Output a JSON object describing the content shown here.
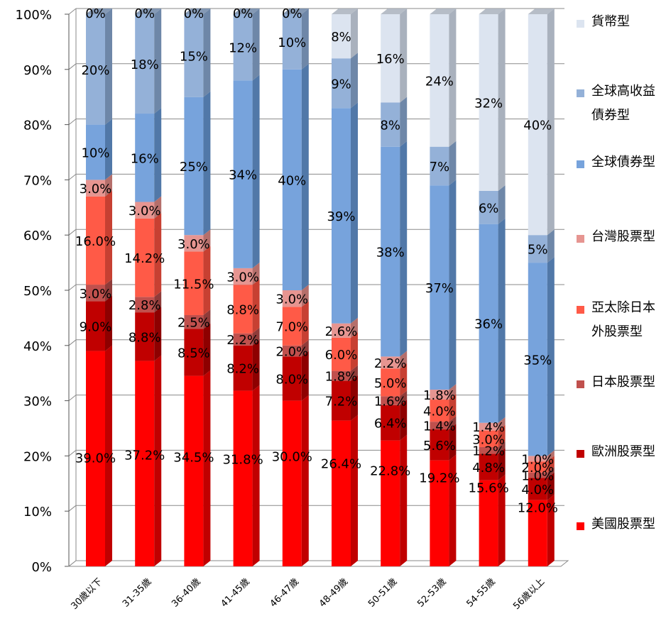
{
  "chart_data": {
    "type": "bar",
    "stacked": true,
    "percent": true,
    "categories": [
      "30歲以下",
      "31-35歲",
      "36-40歲",
      "41-45歲",
      "46-47歲",
      "48-49歲",
      "50-51歲",
      "52-53歲",
      "54-55歲",
      "56歲以上"
    ],
    "y_ticks": [
      "0%",
      "10%",
      "20%",
      "30%",
      "40%",
      "50%",
      "60%",
      "70%",
      "80%",
      "90%",
      "100%"
    ],
    "ylim": [
      0,
      100
    ],
    "legend_position": "right",
    "series": [
      {
        "name": "美國股票型",
        "color": "#ff0000",
        "side_color": "#c00000",
        "values": [
          39.0,
          37.2,
          34.5,
          31.8,
          30.0,
          26.4,
          22.8,
          19.2,
          15.6,
          12.0
        ],
        "labels": [
          "39.0%",
          "37.2%",
          "34.5%",
          "31.8%",
          "30.0%",
          "26.4%",
          "22.8%",
          "19.2%",
          "15.6%",
          "12.0%"
        ]
      },
      {
        "name": "歐洲股票型",
        "color": "#c00000",
        "side_color": "#8e0000",
        "values": [
          9.0,
          8.8,
          8.5,
          8.2,
          8.0,
          7.2,
          6.4,
          5.6,
          4.8,
          4.0
        ],
        "labels": [
          "9.0%",
          "8.8%",
          "8.5%",
          "8.2%",
          "8.0%",
          "7.2%",
          "6.4%",
          "5.6%",
          "4.8%",
          "4.0%"
        ]
      },
      {
        "name": "日本股票型",
        "color": "#c0504d",
        "side_color": "#8f3b39",
        "values": [
          3.0,
          2.8,
          2.5,
          2.2,
          2.0,
          1.8,
          1.6,
          1.4,
          1.2,
          1.0
        ],
        "labels": [
          "3.0%",
          "2.8%",
          "2.5%",
          "2.2%",
          "2.0%",
          "1.8%",
          "1.6%",
          "1.4%",
          "1.2%",
          "1.0%"
        ]
      },
      {
        "name": "亞太除日本外股票型",
        "color": "#ff5a47",
        "side_color": "#c74032",
        "values": [
          16.0,
          14.2,
          11.5,
          8.8,
          7.0,
          6.0,
          5.0,
          4.0,
          3.0,
          2.0
        ],
        "labels": [
          "16.0%",
          "14.2%",
          "11.5%",
          "8.8%",
          "7.0%",
          "6.0%",
          "5.0%",
          "4.0%",
          "3.0%",
          "2.0%"
        ]
      },
      {
        "name": "台灣股票型",
        "color": "#e69591",
        "side_color": "#b56f6b",
        "values": [
          3.0,
          3.0,
          3.0,
          3.0,
          3.0,
          2.6,
          2.2,
          1.8,
          1.4,
          1.0
        ],
        "labels": [
          "3.0%",
          "3.0%",
          "3.0%",
          "3.0%",
          "3.0%",
          "2.6%",
          "2.2%",
          "1.8%",
          "1.4%",
          "1.0%"
        ]
      },
      {
        "name": "全球債券型",
        "color": "#77a3dc",
        "side_color": "#5178a8",
        "values": [
          10,
          16,
          25,
          34,
          40,
          39,
          38,
          37,
          36,
          35
        ],
        "labels": [
          "10%",
          "16%",
          "25%",
          "34%",
          "40%",
          "39%",
          "38%",
          "37%",
          "36%",
          "35%"
        ]
      },
      {
        "name": "全球高收益債券型",
        "color": "#94b1d8",
        "side_color": "#6e87a8",
        "values": [
          20,
          18,
          15,
          12,
          10,
          9,
          8,
          7,
          6,
          5
        ],
        "labels": [
          "20%",
          "18%",
          "15%",
          "12%",
          "10%",
          "9%",
          "8%",
          "7%",
          "6%",
          "5%"
        ]
      },
      {
        "name": "貨幣型",
        "color": "#dce4f0",
        "side_color": "#a9b1bd",
        "values": [
          0,
          0,
          0,
          0,
          0,
          8,
          16,
          24,
          32,
          40
        ],
        "labels": [
          "0%",
          "0%",
          "0%",
          "0%",
          "0%",
          "8%",
          "16%",
          "24%",
          "32%",
          "40%"
        ]
      }
    ]
  }
}
